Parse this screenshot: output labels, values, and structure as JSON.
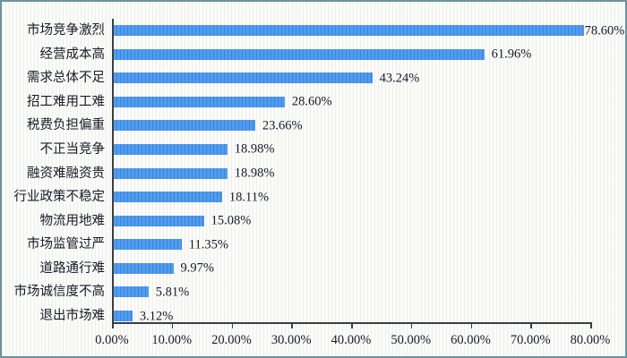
{
  "chart_data": {
    "type": "bar",
    "orientation": "horizontal",
    "title": "",
    "xlabel": "",
    "ylabel": "",
    "categories": [
      "市场竞争激烈",
      "经营成本高",
      "需求总体不足",
      "招工难用工难",
      "税费负担偏重",
      "不正当竞争",
      "融资难融资贵",
      "行业政策不稳定",
      "物流用地难",
      "市场监管过严",
      "道路通行难",
      "市场诚信度不高",
      "退出市场难"
    ],
    "values": [
      78.6,
      61.96,
      43.24,
      28.6,
      23.66,
      18.98,
      18.98,
      18.11,
      15.08,
      11.35,
      9.97,
      5.81,
      3.12
    ],
    "value_labels": [
      "78.60%",
      "61.96%",
      "43.24%",
      "28.60%",
      "23.66%",
      "18.98%",
      "18.98%",
      "18.11%",
      "15.08%",
      "11.35%",
      "9.97%",
      "5.81%",
      "3.12%"
    ],
    "x_ticks": [
      "0.00%",
      "10.00%",
      "20.00%",
      "30.00%",
      "40.00%",
      "50.00%",
      "60.00%",
      "70.00%",
      "80.00%"
    ],
    "xlim": [
      0,
      80
    ],
    "grid": false,
    "legend": "none",
    "colors": {
      "bar": "#4895ea",
      "bar_stripe": "#3c84da",
      "axis": "#3a3f45",
      "text": "#141c28",
      "frame_border": "#6a949a",
      "background": "#fbfbf8"
    }
  }
}
